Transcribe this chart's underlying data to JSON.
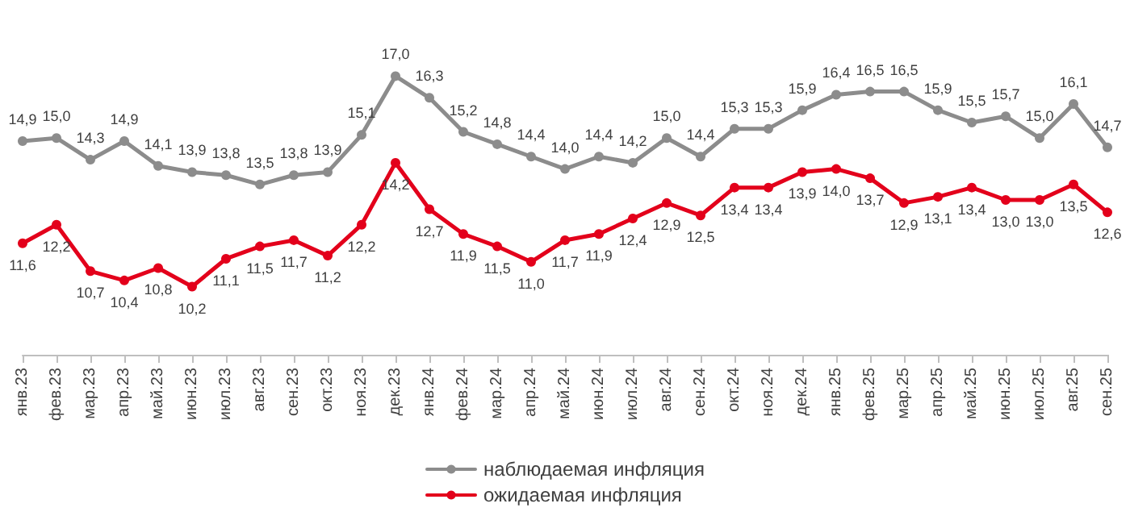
{
  "chart_data": {
    "type": "line",
    "categories": [
      "янв.23",
      "фев.23",
      "мар.23",
      "апр.23",
      "май.23",
      "июн.23",
      "июл.23",
      "авг.23",
      "сен.23",
      "окт.23",
      "ноя.23",
      "дек.23",
      "янв.24",
      "фев.24",
      "мар.24",
      "апр.24",
      "май.24",
      "июн.24",
      "июл.24",
      "авг.24",
      "сен.24",
      "окт.24",
      "ноя.24",
      "дек.24",
      "янв.25",
      "фев.25",
      "мар.25",
      "апр.25",
      "май.25",
      "июн.25",
      "июл.25",
      "авг.25",
      "сен.25"
    ],
    "series": [
      {
        "name": "наблюдаемая инфляция",
        "color": "#8c8c8c",
        "values": [
          14.9,
          15.0,
          14.3,
          14.9,
          14.1,
          13.9,
          13.8,
          13.5,
          13.8,
          13.9,
          15.1,
          17.0,
          16.3,
          15.2,
          14.8,
          14.4,
          14.0,
          14.4,
          14.2,
          15.0,
          14.4,
          15.3,
          15.3,
          15.9,
          16.4,
          16.5,
          16.5,
          15.9,
          15.5,
          15.7,
          15.0,
          16.1,
          14.7
        ],
        "value_labels": [
          "14,9",
          "15,0",
          "14,3",
          "14,9",
          "14,1",
          "13,9",
          "13,8",
          "13,5",
          "13,8",
          "13,9",
          "15,1",
          "17,0",
          "16,3",
          "15,2",
          "14,8",
          "14,4",
          "14,0",
          "14,4",
          "14,2",
          "15,0",
          "14,4",
          "15,3",
          "15,3",
          "15,9",
          "16,4",
          "16,5",
          "16,5",
          "15,9",
          "15,5",
          "15,7",
          "15,0",
          "16,1",
          "14,7"
        ]
      },
      {
        "name": "ожидаемая инфляция",
        "color": "#e3001b",
        "values": [
          11.6,
          12.2,
          10.7,
          10.4,
          10.8,
          10.2,
          11.1,
          11.5,
          11.7,
          11.2,
          12.2,
          14.2,
          12.7,
          11.9,
          11.5,
          11.0,
          11.7,
          11.9,
          12.4,
          12.9,
          12.5,
          13.4,
          13.4,
          13.9,
          14.0,
          13.7,
          12.9,
          13.1,
          13.4,
          13.0,
          13.0,
          13.5,
          12.6
        ],
        "value_labels": [
          "11,6",
          "12,2",
          "10,7",
          "10,4",
          "10,8",
          "10,2",
          "11,1",
          "11,5",
          "11,7",
          "11,2",
          "12,2",
          "14,2",
          "12,7",
          "11,9",
          "11,5",
          "11,0",
          "11,7",
          "11,9",
          "12,4",
          "12,9",
          "12,5",
          "13,4",
          "13,4",
          "13,9",
          "14,0",
          "13,7",
          "12,9",
          "13,1",
          "13,4",
          "13,0",
          "13,0",
          "13,5",
          "12,6"
        ]
      }
    ],
    "marker": "circle",
    "line_style": "solid",
    "grid": false,
    "legend": "bottom"
  }
}
